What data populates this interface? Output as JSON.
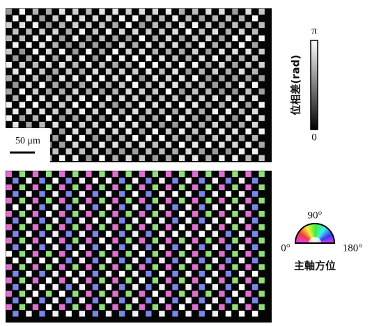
{
  "phase_panel": {
    "scale_bar": "50 μm",
    "colorbar": {
      "max": "π",
      "min": "0",
      "label": "位相差(rad)"
    }
  },
  "orientation_panel": {
    "top": "90°",
    "left": "0°",
    "right": "180°",
    "label": "主軸方位"
  }
}
